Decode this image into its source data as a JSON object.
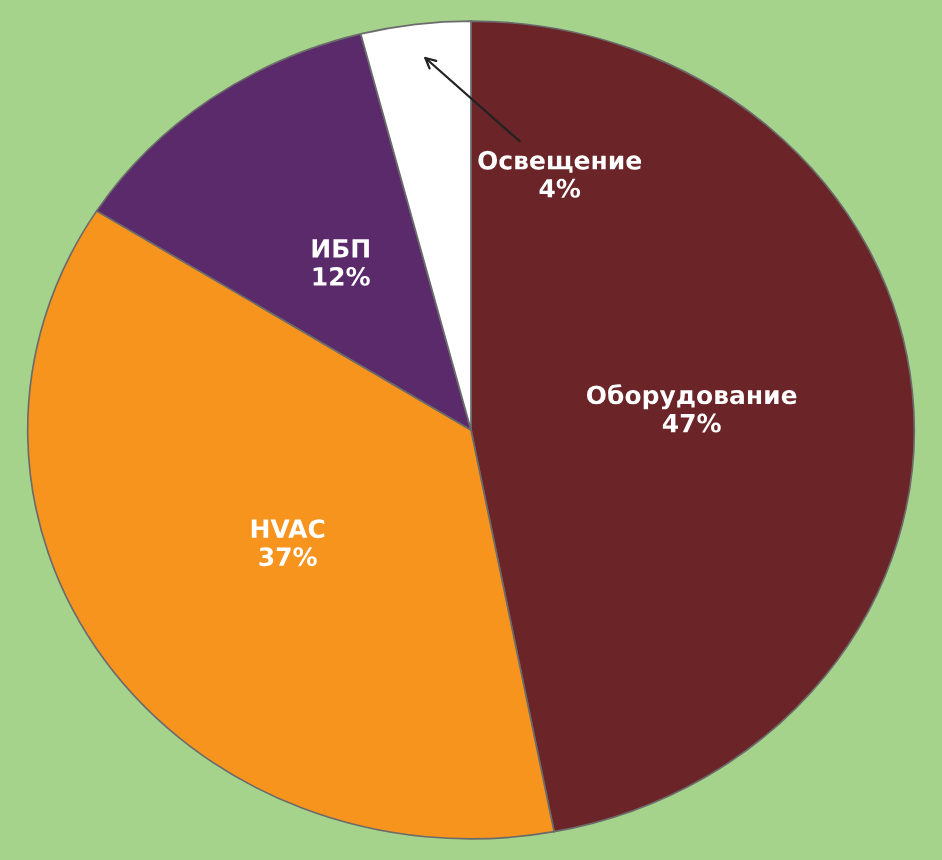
{
  "chart_data": {
    "type": "pie",
    "categories": [
      "Оборудование",
      "HVAC",
      "ИБП",
      "Освещение"
    ],
    "values": [
      47,
      37,
      12,
      4
    ],
    "colors": [
      "#6b2528",
      "#f7941d",
      "#5a2a6b",
      "#ffffff"
    ],
    "value_labels": [
      "47%",
      "37%",
      "12%",
      "4%"
    ],
    "legend": false
  }
}
